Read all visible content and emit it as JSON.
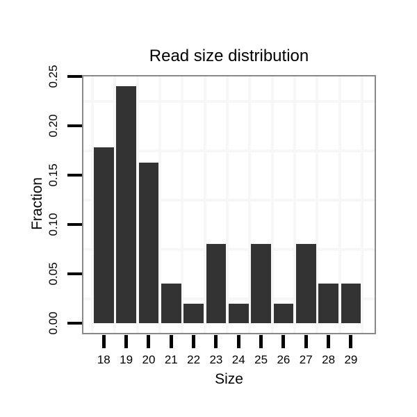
{
  "chart_data": {
    "type": "bar",
    "title": "Read size distribution",
    "xlabel": "Size",
    "ylabel": "Fraction",
    "categories": [
      "18",
      "19",
      "20",
      "21",
      "22",
      "23",
      "24",
      "25",
      "26",
      "27",
      "28",
      "29"
    ],
    "values": [
      0.178,
      0.24,
      0.163,
      0.04,
      0.02,
      0.08,
      0.02,
      0.08,
      0.02,
      0.08,
      0.04,
      0.04
    ],
    "y_tick_labels": [
      "0.00",
      "0.05",
      "0.10",
      "0.15",
      "0.20",
      "0.25"
    ],
    "y_tick_values": [
      0,
      0.05,
      0.1,
      0.15,
      0.2,
      0.25
    ],
    "ylim": [
      0,
      0.25
    ],
    "legend": "none",
    "grid": "faint gridlines at minor positions only (between axis ticks)",
    "bar_color": "#333333",
    "grid_color": "#f7f7f7",
    "panel_border_color": "#898989",
    "tick_color": "#000000",
    "text_color": "#000000",
    "background_color": "#ffffff"
  }
}
